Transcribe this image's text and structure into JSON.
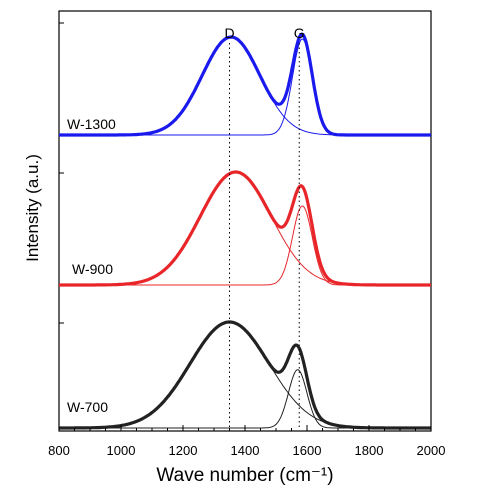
{
  "chart_data": {
    "type": "line",
    "title": "",
    "xlabel": "Wave number (cm⁻¹)",
    "ylabel": "Intensity (a.u.)",
    "xlim": [
      800,
      2000
    ],
    "xticks": [
      800,
      1000,
      1200,
      1400,
      1600,
      1800,
      2000
    ],
    "yticks_shown": false,
    "grid": false,
    "legend": "none",
    "peak_markers": [
      {
        "label": "D",
        "x": 1350
      },
      {
        "label": "G",
        "x": 1575
      }
    ],
    "series": [
      {
        "name": "W-700",
        "color": "#222222",
        "components": [
          {
            "label": "D",
            "center": 1350,
            "fwhm": 300,
            "height": 1.0
          },
          {
            "label": "G",
            "center": 1570,
            "fwhm": 70,
            "height": 0.55
          }
        ]
      },
      {
        "name": "W-900",
        "color": "#e8262a",
        "components": [
          {
            "label": "D",
            "center": 1370,
            "fwhm": 270,
            "height": 1.0
          },
          {
            "label": "G",
            "center": 1585,
            "fwhm": 75,
            "height": 0.7
          }
        ]
      },
      {
        "name": "W-1300",
        "color": "#1a1aee",
        "components": [
          {
            "label": "D",
            "center": 1355,
            "fwhm": 220,
            "height": 1.0
          },
          {
            "label": "G",
            "center": 1585,
            "fwhm": 75,
            "height": 0.98
          }
        ]
      }
    ]
  }
}
